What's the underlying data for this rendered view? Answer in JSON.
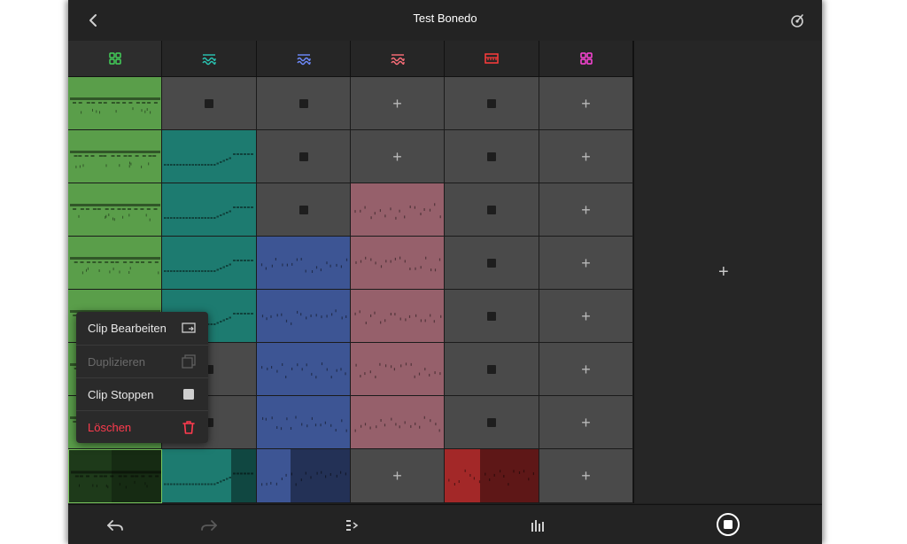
{
  "header": {
    "title": "Test Bonedo"
  },
  "tracks": [
    {
      "icon": "drum-grid-icon",
      "color": "#43d05a"
    },
    {
      "icon": "synth-wave-icon",
      "color": "#29c7b5"
    },
    {
      "icon": "synth-wave-icon",
      "color": "#6f8cff"
    },
    {
      "icon": "synth-wave-icon",
      "color": "#ff6f7a"
    },
    {
      "icon": "keyboard-icon",
      "color": "#ff3b3b"
    },
    {
      "icon": "drum-grid-icon",
      "color": "#ff45d9"
    }
  ],
  "clip_colors": {
    "green": "#5a9e4a",
    "teal": "#1d7b70",
    "blue": "#3d5594",
    "pink": "#96606b",
    "red": "#a32828"
  },
  "grid": [
    [
      "clip-green",
      "stop",
      "stop",
      "plus",
      "stop",
      "plus"
    ],
    [
      "clip-green",
      "clip-teal",
      "stop",
      "plus",
      "stop",
      "plus"
    ],
    [
      "clip-green",
      "clip-teal",
      "stop",
      "clip-pink",
      "stop",
      "plus"
    ],
    [
      "clip-green",
      "clip-teal",
      "clip-blue",
      "clip-pink",
      "stop",
      "plus"
    ],
    [
      "clip-green",
      "clip-teal",
      "clip-blue",
      "clip-pink",
      "stop",
      "plus"
    ],
    [
      "clip-green",
      "stop",
      "clip-blue",
      "clip-pink",
      "stop",
      "plus"
    ],
    [
      "clip-green",
      "stop",
      "clip-blue",
      "clip-pink",
      "stop",
      "plus"
    ],
    [
      "clip-green-selected",
      "clip-teal-playing",
      "clip-blue-playing",
      "plus",
      "clip-red-playing",
      "plus"
    ]
  ],
  "context_menu": {
    "items": [
      {
        "label": "Clip Bearbeiten",
        "icon": "edit-clip-icon",
        "state": "enabled"
      },
      {
        "label": "Duplizieren",
        "icon": "duplicate-icon",
        "state": "disabled"
      },
      {
        "label": "Clip Stoppen",
        "icon": "stop-icon",
        "state": "enabled"
      },
      {
        "label": "Löschen",
        "icon": "trash-icon",
        "state": "destructive"
      }
    ]
  },
  "footer": {
    "buttons": [
      "undo-icon",
      "redo-icon",
      "scene-launch-icon",
      "mixer-icon",
      "record-stop-icon"
    ]
  },
  "colors": {
    "menu_text": "#e8e8e8",
    "menu_disabled": "#6a6a6a",
    "menu_destructive": "#ff3b4e"
  }
}
